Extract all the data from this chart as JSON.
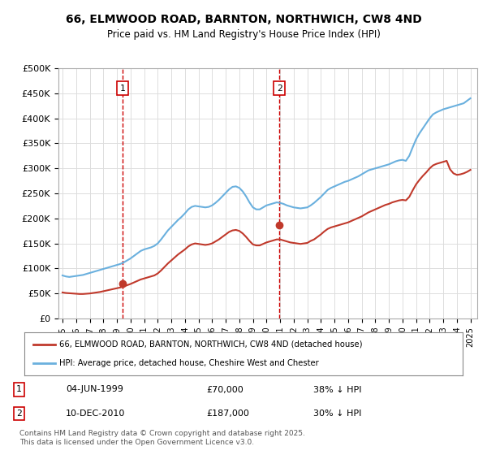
{
  "title_line1": "66, ELMWOOD ROAD, BARNTON, NORTHWICH, CW8 4ND",
  "title_line2": "Price paid vs. HM Land Registry's House Price Index (HPI)",
  "ylabel": "",
  "background_color": "#ffffff",
  "grid_color": "#dddddd",
  "hpi_color": "#6ab0de",
  "price_color": "#c0392b",
  "marker1_date_x": 1999.42,
  "marker1_label": "1",
  "marker1_price": 70000,
  "marker2_date_x": 2010.94,
  "marker2_label": "2",
  "marker2_price": 187000,
  "legend_entry1": "66, ELMWOOD ROAD, BARNTON, NORTHWICH, CW8 4ND (detached house)",
  "legend_entry2": "HPI: Average price, detached house, Cheshire West and Chester",
  "table_row1": "1    04-JUN-1999    £70,000    38% ↓ HPI",
  "table_row2": "2    10-DEC-2010    £187,000    30% ↓ HPI",
  "footer": "Contains HM Land Registry data © Crown copyright and database right 2025.\nThis data is licensed under the Open Government Licence v3.0.",
  "ylim_max": 500000,
  "ylim_min": 0,
  "hpi_data": {
    "years": [
      1995.0,
      1995.25,
      1995.5,
      1995.75,
      1996.0,
      1996.25,
      1996.5,
      1996.75,
      1997.0,
      1997.25,
      1997.5,
      1997.75,
      1998.0,
      1998.25,
      1998.5,
      1998.75,
      1999.0,
      1999.25,
      1999.5,
      1999.75,
      2000.0,
      2000.25,
      2000.5,
      2000.75,
      2001.0,
      2001.25,
      2001.5,
      2001.75,
      2002.0,
      2002.25,
      2002.5,
      2002.75,
      2003.0,
      2003.25,
      2003.5,
      2003.75,
      2004.0,
      2004.25,
      2004.5,
      2004.75,
      2005.0,
      2005.25,
      2005.5,
      2005.75,
      2006.0,
      2006.25,
      2006.5,
      2006.75,
      2007.0,
      2007.25,
      2007.5,
      2007.75,
      2008.0,
      2008.25,
      2008.5,
      2008.75,
      2009.0,
      2009.25,
      2009.5,
      2009.75,
      2010.0,
      2010.25,
      2010.5,
      2010.75,
      2011.0,
      2011.25,
      2011.5,
      2011.75,
      2012.0,
      2012.25,
      2012.5,
      2012.75,
      2013.0,
      2013.25,
      2013.5,
      2013.75,
      2014.0,
      2014.25,
      2014.5,
      2014.75,
      2015.0,
      2015.25,
      2015.5,
      2015.75,
      2016.0,
      2016.25,
      2016.5,
      2016.75,
      2017.0,
      2017.25,
      2017.5,
      2017.75,
      2018.0,
      2018.25,
      2018.5,
      2018.75,
      2019.0,
      2019.25,
      2019.5,
      2019.75,
      2020.0,
      2020.25,
      2020.5,
      2020.75,
      2021.0,
      2021.25,
      2021.5,
      2021.75,
      2022.0,
      2022.25,
      2022.5,
      2022.75,
      2023.0,
      2023.25,
      2023.5,
      2023.75,
      2024.0,
      2024.25,
      2024.5,
      2024.75,
      2025.0
    ],
    "values": [
      86000,
      84000,
      83000,
      84000,
      85000,
      86000,
      87000,
      89000,
      91000,
      93000,
      95000,
      97000,
      99000,
      101000,
      103000,
      105000,
      107000,
      109000,
      112000,
      116000,
      120000,
      125000,
      130000,
      135000,
      138000,
      140000,
      142000,
      145000,
      150000,
      158000,
      167000,
      176000,
      183000,
      190000,
      197000,
      203000,
      210000,
      218000,
      223000,
      225000,
      224000,
      223000,
      222000,
      223000,
      226000,
      231000,
      237000,
      244000,
      251000,
      258000,
      263000,
      264000,
      261000,
      254000,
      244000,
      232000,
      222000,
      218000,
      218000,
      222000,
      226000,
      228000,
      230000,
      232000,
      231000,
      229000,
      226000,
      224000,
      222000,
      221000,
      220000,
      221000,
      222000,
      226000,
      231000,
      237000,
      243000,
      250000,
      257000,
      261000,
      264000,
      267000,
      270000,
      273000,
      275000,
      278000,
      281000,
      284000,
      288000,
      292000,
      296000,
      298000,
      300000,
      302000,
      304000,
      306000,
      308000,
      311000,
      314000,
      316000,
      317000,
      315000,
      325000,
      342000,
      358000,
      370000,
      380000,
      390000,
      400000,
      408000,
      412000,
      415000,
      418000,
      420000,
      422000,
      424000,
      426000,
      428000,
      430000,
      435000,
      440000
    ]
  },
  "price_data": {
    "years": [
      1995.0,
      1995.25,
      1995.5,
      1995.75,
      1996.0,
      1996.25,
      1996.5,
      1996.75,
      1997.0,
      1997.25,
      1997.5,
      1997.75,
      1998.0,
      1998.25,
      1998.5,
      1998.75,
      1999.0,
      1999.25,
      1999.5,
      1999.75,
      2000.0,
      2000.25,
      2000.5,
      2000.75,
      2001.0,
      2001.25,
      2001.5,
      2001.75,
      2002.0,
      2002.25,
      2002.5,
      2002.75,
      2003.0,
      2003.25,
      2003.5,
      2003.75,
      2004.0,
      2004.25,
      2004.5,
      2004.75,
      2005.0,
      2005.25,
      2005.5,
      2005.75,
      2006.0,
      2006.25,
      2006.5,
      2006.75,
      2007.0,
      2007.25,
      2007.5,
      2007.75,
      2008.0,
      2008.25,
      2008.5,
      2008.75,
      2009.0,
      2009.25,
      2009.5,
      2009.75,
      2010.0,
      2010.25,
      2010.5,
      2010.75,
      2011.0,
      2011.25,
      2011.5,
      2011.75,
      2012.0,
      2012.25,
      2012.5,
      2012.75,
      2013.0,
      2013.25,
      2013.5,
      2013.75,
      2014.0,
      2014.25,
      2014.5,
      2014.75,
      2015.0,
      2015.25,
      2015.5,
      2015.75,
      2016.0,
      2016.25,
      2016.5,
      2016.75,
      2017.0,
      2017.25,
      2017.5,
      2017.75,
      2018.0,
      2018.25,
      2018.5,
      2018.75,
      2019.0,
      2019.25,
      2019.5,
      2019.75,
      2020.0,
      2020.25,
      2020.5,
      2020.75,
      2021.0,
      2021.25,
      2021.5,
      2021.75,
      2022.0,
      2022.25,
      2022.5,
      2022.75,
      2023.0,
      2023.25,
      2023.5,
      2023.75,
      2024.0,
      2024.25,
      2024.5,
      2024.75,
      2025.0
    ],
    "values": [
      52000,
      51000,
      50500,
      50000,
      49500,
      49000,
      49000,
      49500,
      50000,
      51000,
      52000,
      53000,
      54500,
      56000,
      57500,
      59000,
      60500,
      62000,
      64000,
      66500,
      69000,
      72000,
      75000,
      78000,
      80000,
      82000,
      84000,
      86000,
      90000,
      96000,
      103000,
      110000,
      116000,
      122000,
      128000,
      133000,
      138000,
      144000,
      148000,
      150000,
      149000,
      148000,
      147000,
      148000,
      150000,
      154000,
      158000,
      163000,
      168000,
      173000,
      176000,
      177000,
      175000,
      170000,
      163000,
      155000,
      148000,
      146000,
      146000,
      149000,
      152000,
      154000,
      156000,
      158000,
      158000,
      156000,
      154000,
      152000,
      151000,
      150000,
      149000,
      150000,
      151000,
      155000,
      158000,
      163000,
      168000,
      174000,
      179000,
      182000,
      184000,
      186000,
      188000,
      190000,
      192000,
      195000,
      198000,
      201000,
      204000,
      208000,
      212000,
      215000,
      218000,
      221000,
      224000,
      227000,
      229000,
      232000,
      234000,
      236000,
      237000,
      236000,
      243000,
      256000,
      268000,
      277000,
      285000,
      292000,
      300000,
      306000,
      309000,
      311000,
      313000,
      315000,
      298000,
      290000,
      287000,
      288000,
      290000,
      293000,
      297000
    ]
  },
  "xtick_years": [
    1995,
    1996,
    1997,
    1998,
    1999,
    2000,
    2001,
    2002,
    2003,
    2004,
    2005,
    2006,
    2007,
    2008,
    2009,
    2010,
    2011,
    2012,
    2013,
    2014,
    2015,
    2016,
    2017,
    2018,
    2019,
    2020,
    2021,
    2022,
    2023,
    2024,
    2025
  ],
  "ytick_values": [
    0,
    50000,
    100000,
    150000,
    200000,
    250000,
    300000,
    350000,
    400000,
    450000,
    500000
  ],
  "ytick_labels": [
    "£0",
    "£50K",
    "£100K",
    "£150K",
    "£200K",
    "£250K",
    "£300K",
    "£350K",
    "£400K",
    "£450K",
    "£500K"
  ]
}
